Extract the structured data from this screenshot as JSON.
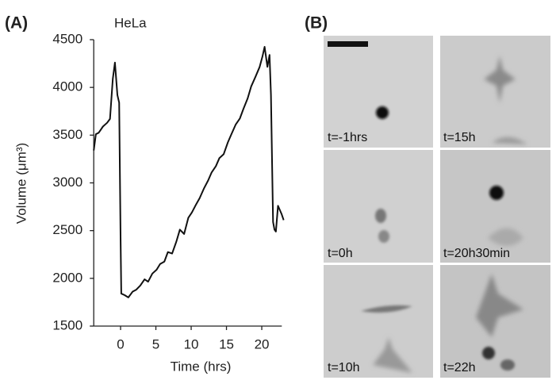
{
  "panel_labels": [
    "(A)",
    "(B)"
  ],
  "chart_data": {
    "type": "line",
    "title": "HeLa",
    "x_label": "Time (hrs)",
    "y_label": "Volume (μm³)",
    "x": [
      -3.8,
      -3.5,
      -3.1,
      -2.5,
      -1.9,
      -1.5,
      -1.1,
      -0.8,
      -0.45,
      -0.2,
      0,
      0.1,
      0.55,
      1.1,
      1.7,
      2.2,
      2.8,
      3.4,
      3.9,
      4.5,
      5.1,
      5.6,
      6.2,
      6.7,
      7.3,
      7.9,
      8.4,
      9.0,
      9.6,
      10.1,
      10.7,
      11.2,
      11.8,
      12.4,
      12.9,
      13.5,
      14.0,
      14.6,
      15.2,
      15.7,
      16.3,
      16.9,
      17.4,
      18.0,
      18.5,
      19.1,
      19.7,
      20.1,
      20.4,
      20.8,
      21.1,
      21.3,
      21.6,
      21.8,
      22.0,
      22.3,
      22.8,
      23.1
    ],
    "values": [
      3340,
      3510,
      3525,
      3590,
      3630,
      3670,
      4090,
      4260,
      3920,
      3840,
      2425,
      1840,
      1825,
      1800,
      1860,
      1880,
      1925,
      1990,
      1965,
      2050,
      2090,
      2150,
      2175,
      2275,
      2260,
      2385,
      2510,
      2465,
      2635,
      2690,
      2775,
      2840,
      2940,
      3025,
      3110,
      3175,
      3260,
      3300,
      3425,
      3510,
      3610,
      3675,
      3775,
      3885,
      4010,
      4110,
      4215,
      4325,
      4425,
      4215,
      4340,
      3925,
      2590,
      2510,
      2490,
      2760,
      2675,
      2610
    ],
    "color": "#111111",
    "xlim": [
      -3.8,
      23.4
    ],
    "ylim": [
      1500,
      4500
    ],
    "xticks": [
      0,
      5,
      10,
      15,
      20
    ],
    "yticks": [
      1500,
      2000,
      2500,
      3000,
      3500,
      4000,
      4500
    ]
  },
  "images": [
    {
      "label": "t=-1hrs"
    },
    {
      "label": "t=15h"
    },
    {
      "label": "t=0h"
    },
    {
      "label": "t=20h30min"
    },
    {
      "label": "t=10h"
    },
    {
      "label": "t=22h"
    }
  ]
}
